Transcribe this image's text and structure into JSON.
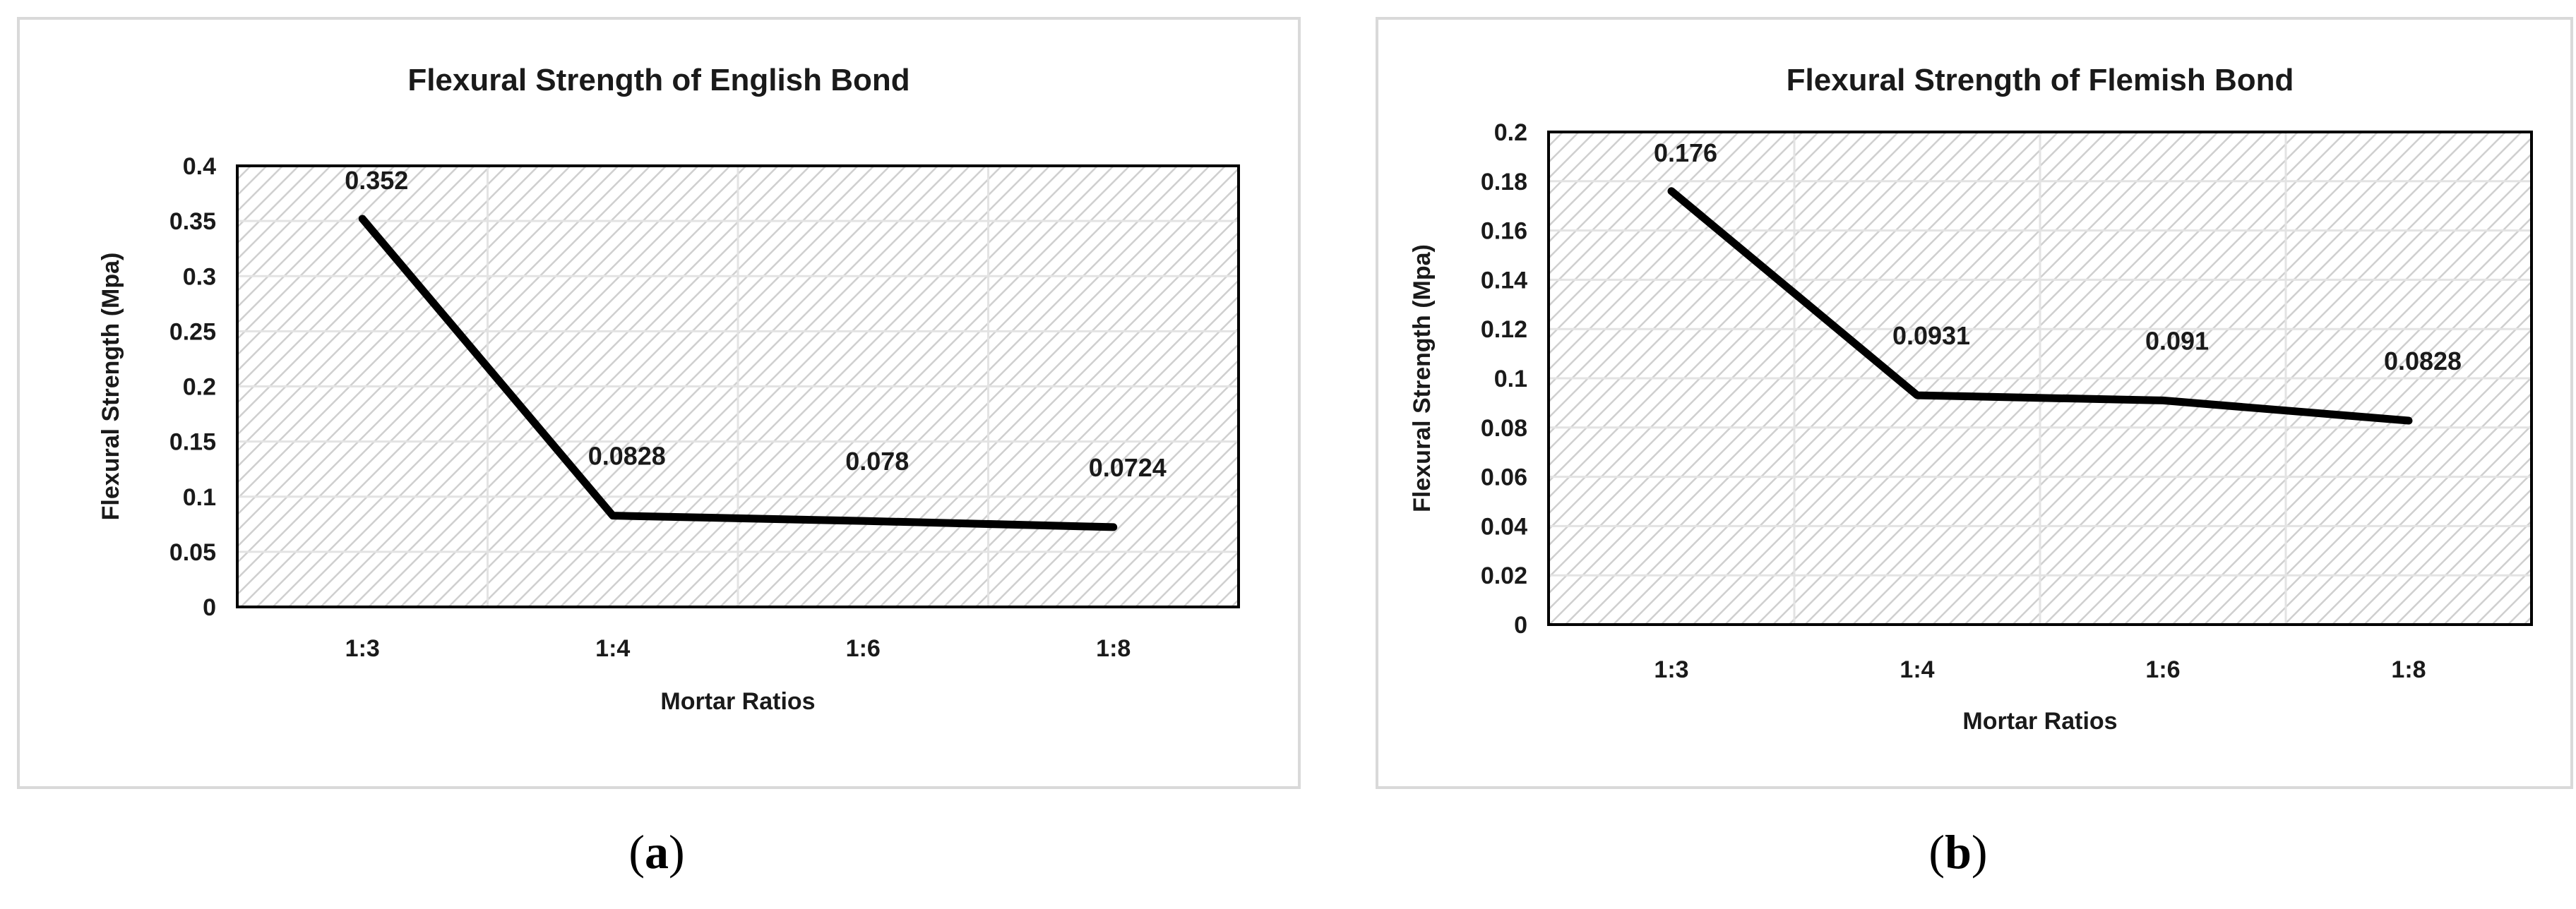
{
  "chart_data": [
    {
      "type": "line",
      "title": "Flexural Strength of English Bond",
      "xlabel": "Mortar Ratios",
      "ylabel": "Flexural  Strength (Mpa)",
      "categories": [
        "1:3",
        "1:4",
        "1:6",
        "1:8"
      ],
      "values": [
        0.352,
        0.0828,
        0.078,
        0.0724
      ],
      "data_labels": [
        "0.352",
        "0.0828",
        "0.078",
        "0.0724"
      ],
      "ylim": [
        0,
        0.4
      ],
      "yticks": [
        "0",
        "0.05",
        "0.1",
        "0.15",
        "0.2",
        "0.25",
        "0.3",
        "0.35",
        "0.4"
      ],
      "grid": true,
      "background": "diagonal hatch",
      "line_color": "#000000",
      "caption": "a"
    },
    {
      "type": "line",
      "title": "Flexural Strength of Flemish Bond",
      "xlabel": "Mortar Ratios",
      "ylabel": "Flexural  Strength (Mpa)",
      "categories": [
        "1:3",
        "1:4",
        "1:6",
        "1:8"
      ],
      "values": [
        0.176,
        0.0931,
        0.091,
        0.0828
      ],
      "data_labels": [
        "0.176",
        "0.0931",
        "0.091",
        "0.0828"
      ],
      "ylim": [
        0,
        0.2
      ],
      "yticks": [
        "0",
        "0.02",
        "0.04",
        "0.06",
        "0.08",
        "0.1",
        "0.12",
        "0.14",
        "0.16",
        "0.18",
        "0.2"
      ],
      "grid": true,
      "background": "diagonal hatch",
      "line_color": "#000000",
      "caption": "b"
    }
  ],
  "captions": {
    "a": "a",
    "b": "b"
  }
}
